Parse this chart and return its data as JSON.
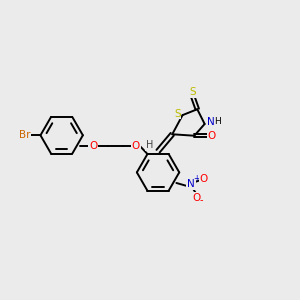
{
  "background_color": "#ebebeb",
  "figsize": [
    3.0,
    3.0
  ],
  "dpi": 100,
  "bond_color": "#000000",
  "bond_lw": 1.4,
  "elements": {
    "Br": {
      "color": "#cc6600",
      "fontsize": 7.5
    },
    "O": {
      "color": "#ff0000",
      "fontsize": 7.5
    },
    "N": {
      "color": "#0000cc",
      "fontsize": 7.5
    },
    "S": {
      "color": "#bbbb00",
      "fontsize": 7.5
    },
    "H": {
      "color": "#444444",
      "fontsize": 7.0
    }
  },
  "xlim": [
    0,
    10
  ],
  "ylim": [
    0,
    10
  ]
}
